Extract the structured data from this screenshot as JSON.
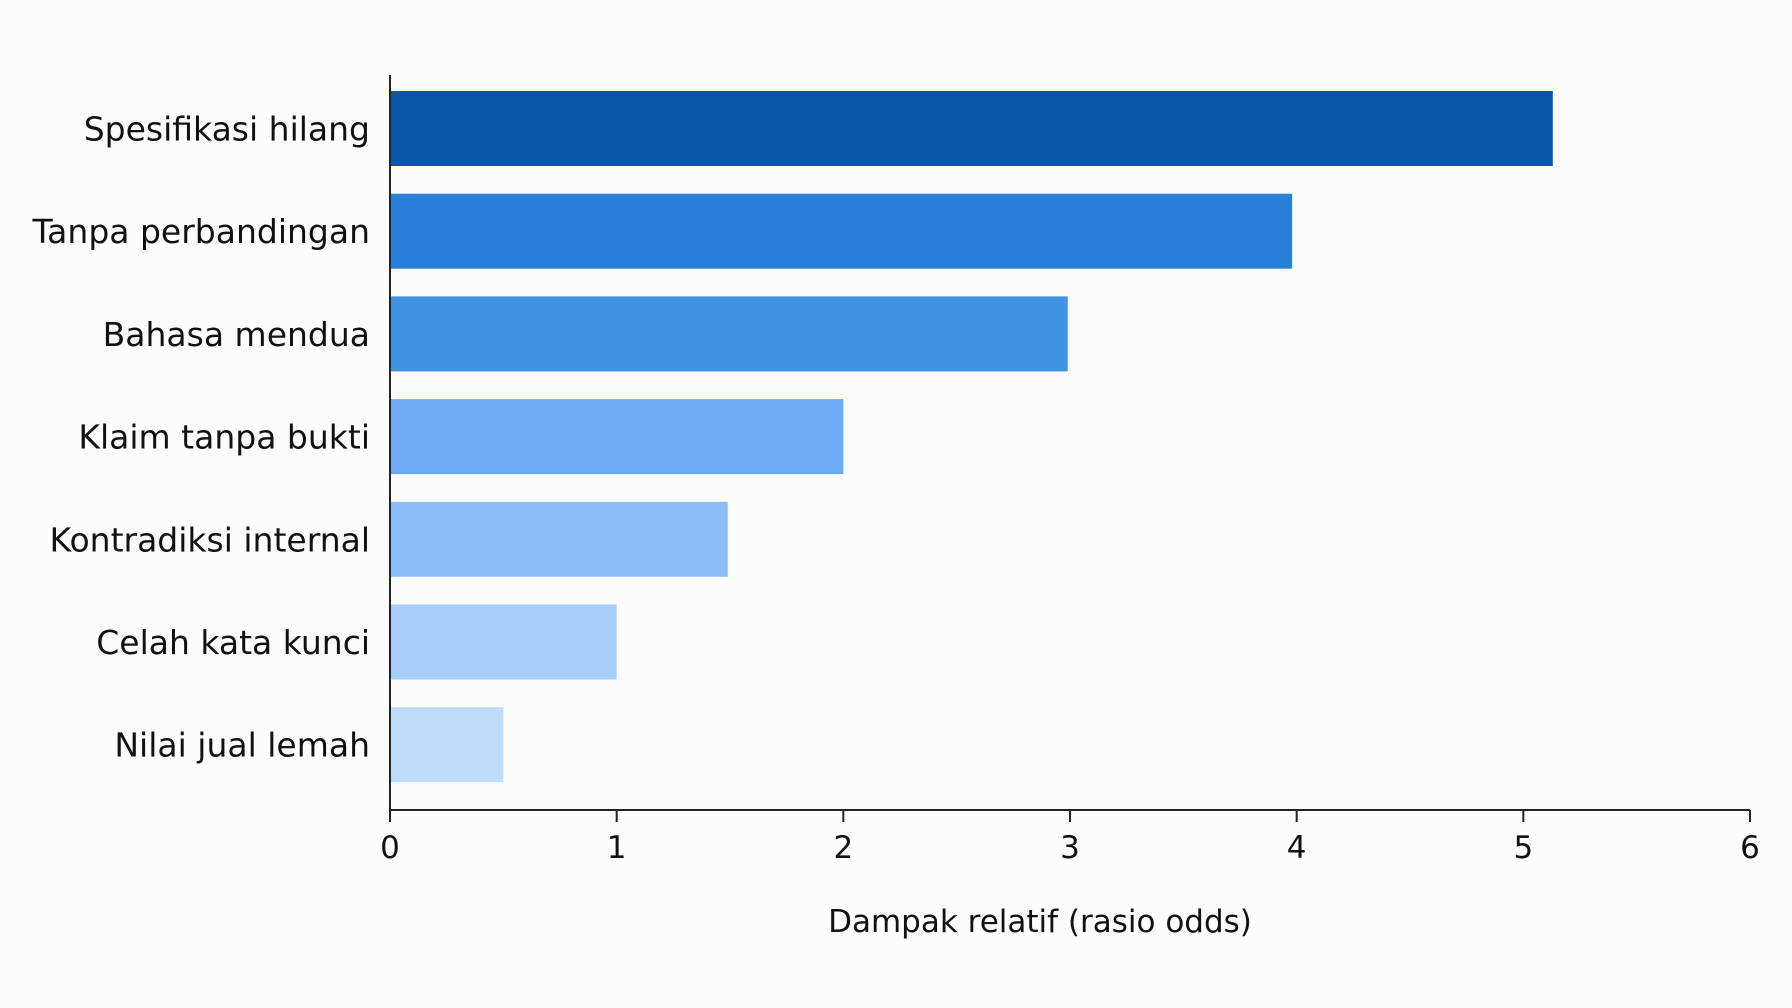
{
  "chart_data": {
    "type": "bar",
    "orientation": "horizontal",
    "categories": [
      "Spesifikasi hilang",
      "Tanpa perbandingan",
      "Bahasa mendua",
      "Klaim tanpa bukti",
      "Kontradiksi internal",
      "Celah kata kunci",
      "Nilai jual lemah"
    ],
    "values": [
      5.13,
      3.98,
      2.99,
      2.0,
      1.49,
      1.0,
      0.5
    ],
    "colors": [
      "#0a55a9",
      "#2a7fd6",
      "#4393e4",
      "#6aabf3",
      "#8dbef8",
      "#a7cefa",
      "#c0dbfc"
    ],
    "xlabel": "Dampak relatif (rasio odds)",
    "ylabel": "",
    "xlim": [
      0,
      6
    ],
    "xticks": [
      "0",
      "1",
      "2",
      "3",
      "4",
      "5",
      "6"
    ],
    "grid": false,
    "legend": "none"
  }
}
